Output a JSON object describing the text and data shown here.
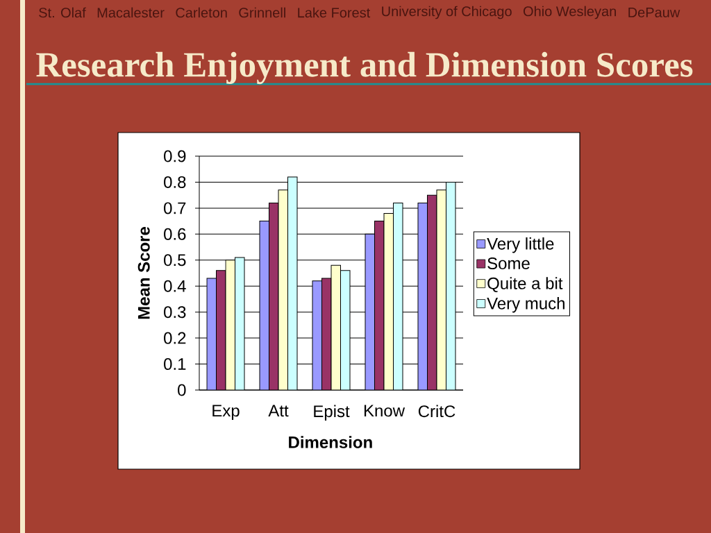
{
  "chart_data": {
    "type": "bar",
    "title": "Research Enjoyment and Dimension Scores",
    "annotations": [
      "St. Olaf",
      "Macalester",
      "Carleton",
      "Grinnell",
      "Lake Forest",
      "University of Chicago",
      "Ohio Wesleyan",
      "DePauw"
    ],
    "xlabel": "Dimension",
    "ylabel": "Mean Score",
    "categories": [
      "Exp",
      "Att",
      "Epist",
      "Know",
      "CritC"
    ],
    "series": [
      {
        "name": "Very little",
        "color": "#9999ff",
        "values": [
          0.43,
          0.65,
          0.42,
          0.6,
          0.72
        ]
      },
      {
        "name": "Some",
        "color": "#993366",
        "values": [
          0.46,
          0.72,
          0.43,
          0.65,
          0.75
        ]
      },
      {
        "name": "Quite a bit",
        "color": "#ffffcc",
        "values": [
          0.5,
          0.77,
          0.48,
          0.68,
          0.77
        ]
      },
      {
        "name": "Very much",
        "color": "#ccffff",
        "values": [
          0.51,
          0.82,
          0.46,
          0.72,
          0.8
        ]
      }
    ],
    "ylim": [
      0,
      0.9
    ],
    "yticks": [
      0,
      0.1,
      0.2,
      0.3,
      0.4,
      0.5,
      0.6,
      0.7,
      0.8,
      0.9
    ],
    "grid": "y",
    "legend": "right"
  }
}
